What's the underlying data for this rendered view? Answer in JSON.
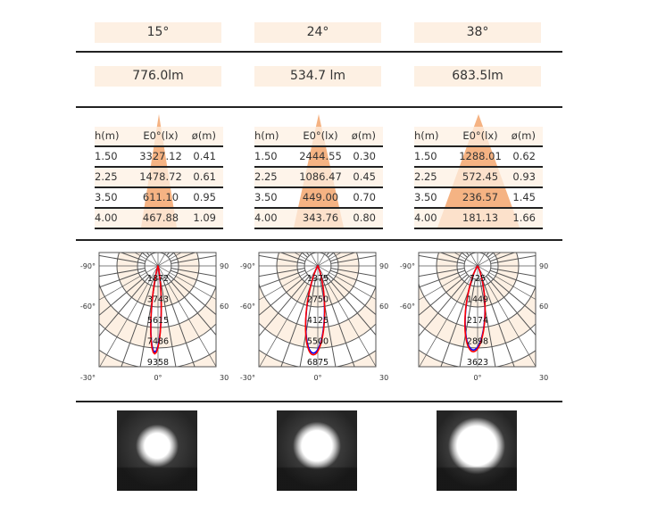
{
  "columns": [
    {
      "beam_angle": "15°",
      "lumen": "776.0lm",
      "table": {
        "headers": [
          "h(m)",
          "E0°(lx)",
          "ø(m)"
        ],
        "rows": [
          [
            "1.50",
            "3327.12",
            "0.41"
          ],
          [
            "2.25",
            "1478.72",
            "0.61"
          ],
          [
            "3.50",
            "611.10",
            "0.95"
          ],
          [
            "4.00",
            "467.88",
            "1.09"
          ]
        ]
      },
      "polar": {
        "ring_labels": [
          "1872",
          "3743",
          "5615",
          "7486",
          "9358"
        ],
        "angle_labels": {
          "left_top": "-90°",
          "right_top": "90°",
          "left_mid": "-60°",
          "right_mid": "60°",
          "left_bottom": "-30°",
          "center": "0°",
          "right_bottom": "30°"
        }
      }
    },
    {
      "beam_angle": "24°",
      "lumen": "534.7 lm",
      "table": {
        "headers": [
          "h(m)",
          "E0°(lx)",
          "ø(m)"
        ],
        "rows": [
          [
            "1.50",
            "2444.55",
            "0.30"
          ],
          [
            "2.25",
            "1086.47",
            "0.45"
          ],
          [
            "3.50",
            "449.00",
            "0.70"
          ],
          [
            "4.00",
            "343.76",
            "0.80"
          ]
        ]
      },
      "polar": {
        "ring_labels": [
          "1375",
          "2750",
          "4125",
          "5500",
          "6875"
        ],
        "angle_labels": {
          "left_top": "-90°",
          "right_top": "90°",
          "left_mid": "-60°",
          "right_mid": "60°",
          "left_bottom": "-30°",
          "center": "0°",
          "right_bottom": "30°"
        }
      }
    },
    {
      "beam_angle": "38°",
      "lumen": "683.5lm",
      "table": {
        "headers": [
          "h(m)",
          "E0°(lx)",
          "ø(m)"
        ],
        "rows": [
          [
            "1.50",
            "1288.01",
            "0.62"
          ],
          [
            "2.25",
            "572.45",
            "0.93"
          ],
          [
            "3.50",
            "236.57",
            "1.45"
          ],
          [
            "4.00",
            "181.13",
            "1.66"
          ]
        ]
      },
      "polar": {
        "ring_labels": [
          "725",
          "1449",
          "2174",
          "2898",
          "3623"
        ],
        "angle_labels": {
          "left_top": "-90°",
          "right_top": "90°",
          "left_mid": "-60°",
          "right_mid": "60°",
          "center": "0°",
          "right_bottom": "30°"
        }
      }
    }
  ],
  "colors": {
    "band": "#fdf0e3",
    "cone": "#f5b383",
    "curve_c0": "#0000ff",
    "curve_c90": "#ff0000",
    "rule": "#222222"
  }
}
